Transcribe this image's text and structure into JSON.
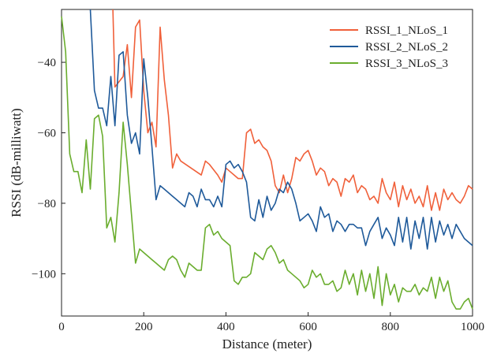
{
  "chart_data": {
    "type": "line",
    "title": "",
    "xlabel": "Distance (meter)",
    "ylabel": "RSSI (dB-milliwatt)",
    "xlim": [
      0,
      1000
    ],
    "ylim": [
      -112,
      -25
    ],
    "xticks": [
      0,
      200,
      400,
      600,
      800,
      1000
    ],
    "yticks": [
      -100,
      -80,
      -60,
      -40
    ],
    "grid": false,
    "legend_position": "top-right",
    "series": [
      {
        "name": "RSSI_1_NLoS_1",
        "color": "#f0603a",
        "x": [
          125,
          130,
          150,
          160,
          170,
          180,
          190,
          200,
          210,
          220,
          230,
          240,
          250,
          260,
          270,
          280,
          290,
          340,
          350,
          360,
          380,
          390,
          400,
          410,
          420,
          430,
          440,
          450,
          460,
          470,
          480,
          490,
          500,
          510,
          520,
          530,
          540,
          550,
          560,
          570,
          580,
          590,
          600,
          610,
          620,
          630,
          640,
          650,
          660,
          670,
          680,
          690,
          700,
          710,
          720,
          730,
          740,
          750,
          760,
          770,
          780,
          790,
          800,
          810,
          820,
          830,
          840,
          850,
          860,
          870,
          880,
          890,
          900,
          910,
          920,
          930,
          940,
          950,
          960,
          970,
          980,
          990,
          1000
        ],
        "y": [
          -25,
          -47,
          -44,
          -35,
          -50,
          -30,
          -28,
          -48,
          -60,
          -57,
          -64,
          -30,
          -45,
          -55,
          -70,
          -66,
          -68,
          -72,
          -68,
          -69,
          -72,
          -74,
          -70,
          -71,
          -72,
          -73,
          -73,
          -60,
          -59,
          -63,
          -62,
          -64,
          -65,
          -68,
          -75,
          -77,
          -72,
          -77,
          -73,
          -67,
          -68,
          -66,
          -65,
          -68,
          -72,
          -70,
          -71,
          -75,
          -73,
          -74,
          -78,
          -73,
          -74,
          -72,
          -77,
          -75,
          -76,
          -79,
          -78,
          -80,
          -73,
          -77,
          -79,
          -74,
          -81,
          -75,
          -79,
          -76,
          -80,
          -78,
          -81,
          -75,
          -82,
          -77,
          -82,
          -76,
          -79,
          -77,
          -79,
          -80,
          -78,
          -75,
          -76
        ]
      },
      {
        "name": "RSSI_2_NLoS_2",
        "color": "#1f5a9a",
        "x": [
          70,
          80,
          90,
          100,
          110,
          120,
          130,
          140,
          150,
          160,
          170,
          180,
          190,
          200,
          210,
          220,
          230,
          240,
          250,
          260,
          270,
          280,
          290,
          300,
          310,
          320,
          330,
          340,
          350,
          360,
          370,
          380,
          390,
          400,
          410,
          420,
          430,
          440,
          450,
          460,
          470,
          480,
          490,
          500,
          510,
          520,
          530,
          540,
          550,
          560,
          570,
          580,
          590,
          600,
          610,
          620,
          630,
          640,
          650,
          660,
          670,
          680,
          690,
          700,
          710,
          720,
          730,
          740,
          750,
          760,
          770,
          780,
          790,
          800,
          810,
          820,
          830,
          840,
          850,
          860,
          870,
          880,
          890,
          900,
          910,
          920,
          930,
          940,
          950,
          960,
          970,
          980,
          990,
          1000
        ],
        "y": [
          -25,
          -48,
          -53,
          -53,
          -58,
          -44,
          -58,
          -38,
          -37,
          -55,
          -63,
          -60,
          -66,
          -39,
          -50,
          -64,
          -79,
          -75,
          -76,
          -77,
          -78,
          -79,
          -80,
          -81,
          -77,
          -78,
          -81,
          -76,
          -79,
          -79,
          -81,
          -78,
          -81,
          -69,
          -68,
          -70,
          -69,
          -71,
          -74,
          -84,
          -85,
          -79,
          -84,
          -78,
          -82,
          -80,
          -76,
          -77,
          -74,
          -76,
          -80,
          -85,
          -84,
          -83,
          -85,
          -88,
          -81,
          -84,
          -83,
          -88,
          -85,
          -86,
          -88,
          -86,
          -86,
          -87,
          -87,
          -92,
          -88,
          -86,
          -84,
          -90,
          -87,
          -89,
          -92,
          -84,
          -91,
          -84,
          -93,
          -85,
          -90,
          -84,
          -93,
          -84,
          -91,
          -85,
          -89,
          -86,
          -90,
          -86,
          -88,
          -90,
          -91,
          -92
        ]
      },
      {
        "name": "RSSI_3_NLoS_3",
        "color": "#6aad2e",
        "x": [
          0,
          10,
          20,
          30,
          40,
          50,
          60,
          70,
          80,
          90,
          100,
          110,
          120,
          130,
          140,
          150,
          160,
          170,
          180,
          190,
          200,
          210,
          220,
          230,
          240,
          250,
          260,
          270,
          280,
          290,
          300,
          310,
          320,
          330,
          340,
          350,
          360,
          370,
          380,
          390,
          400,
          410,
          420,
          430,
          440,
          450,
          460,
          470,
          480,
          490,
          500,
          510,
          520,
          530,
          540,
          550,
          560,
          570,
          580,
          590,
          600,
          610,
          620,
          630,
          640,
          650,
          660,
          670,
          680,
          690,
          700,
          710,
          720,
          730,
          740,
          750,
          760,
          770,
          780,
          790,
          800,
          810,
          820,
          830,
          840,
          850,
          860,
          870,
          880,
          890,
          900,
          910,
          920,
          930,
          940,
          950,
          960,
          970,
          980,
          990,
          1000
        ],
        "y": [
          -27,
          -37,
          -66,
          -71,
          -71,
          -77,
          -62,
          -76,
          -56,
          -55,
          -61,
          -87,
          -84,
          -91,
          -77,
          -57,
          -69,
          -83,
          -97,
          -93,
          -94,
          -95,
          -96,
          -97,
          -98,
          -99,
          -96,
          -95,
          -96,
          -99,
          -101,
          -97,
          -98,
          -99,
          -99,
          -87,
          -86,
          -89,
          -88,
          -90,
          -91,
          -92,
          -102,
          -103,
          -101,
          -101,
          -100,
          -94,
          -95,
          -96,
          -93,
          -92,
          -94,
          -97,
          -96,
          -99,
          -100,
          -101,
          -102,
          -104,
          -103,
          -99,
          -101,
          -100,
          -103,
          -103,
          -102,
          -105,
          -104,
          -99,
          -103,
          -100,
          -106,
          -99,
          -105,
          -100,
          -107,
          -98,
          -109,
          -100,
          -106,
          -103,
          -108,
          -104,
          -105,
          -105,
          -103,
          -106,
          -104,
          -105,
          -101,
          -107,
          -101,
          -105,
          -102,
          -108,
          -110,
          -110,
          -108,
          -107,
          -110
        ]
      }
    ]
  }
}
